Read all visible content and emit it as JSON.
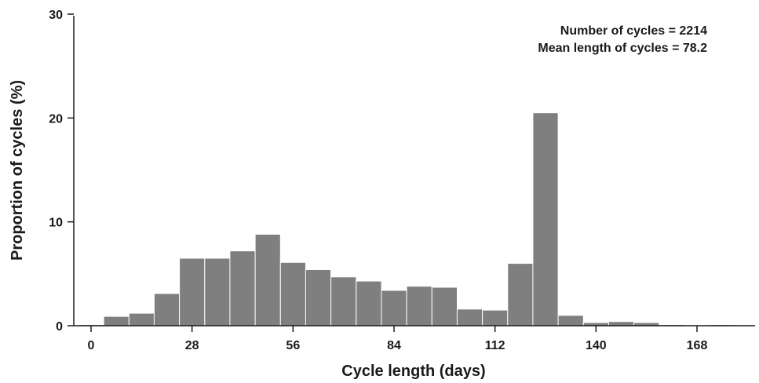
{
  "chart_data": {
    "type": "bar",
    "xlabel": "Cycle length (days)",
    "ylabel": "Proportion of cycles (%)",
    "annotations": [
      "Number of cycles = 2214",
      "Mean length of cycles = 78.2"
    ],
    "bin_width": 7,
    "bins": [
      {
        "start": -3.5,
        "value": 0.1
      },
      {
        "start": 3.5,
        "value": 0.9
      },
      {
        "start": 10.5,
        "value": 1.2
      },
      {
        "start": 17.5,
        "value": 3.1
      },
      {
        "start": 24.5,
        "value": 6.5
      },
      {
        "start": 31.5,
        "value": 6.5
      },
      {
        "start": 38.5,
        "value": 7.2
      },
      {
        "start": 45.5,
        "value": 8.8
      },
      {
        "start": 52.5,
        "value": 6.1
      },
      {
        "start": 59.5,
        "value": 5.4
      },
      {
        "start": 66.5,
        "value": 4.7
      },
      {
        "start": 73.5,
        "value": 4.3
      },
      {
        "start": 80.5,
        "value": 3.4
      },
      {
        "start": 87.5,
        "value": 3.8
      },
      {
        "start": 94.5,
        "value": 3.7
      },
      {
        "start": 101.5,
        "value": 1.6
      },
      {
        "start": 108.5,
        "value": 1.5
      },
      {
        "start": 115.5,
        "value": 6.0
      },
      {
        "start": 122.5,
        "value": 20.5
      },
      {
        "start": 129.5,
        "value": 1.0
      },
      {
        "start": 136.5,
        "value": 0.3
      },
      {
        "start": 143.5,
        "value": 0.4
      },
      {
        "start": 150.5,
        "value": 0.3
      },
      {
        "start": 157.5,
        "value": 0.1
      },
      {
        "start": 164.5,
        "value": 0.05
      },
      {
        "start": 171.5,
        "value": 0.1
      }
    ],
    "x_ticks": [
      0,
      28,
      56,
      84,
      112,
      140,
      168
    ],
    "y_ticks": [
      0,
      10,
      20,
      30
    ],
    "xlim": [
      -7,
      182
    ],
    "ylim": [
      0,
      30
    ],
    "grid": false,
    "bar_color": "#7f7f7f",
    "bar_edge_color": "#ffffff"
  }
}
